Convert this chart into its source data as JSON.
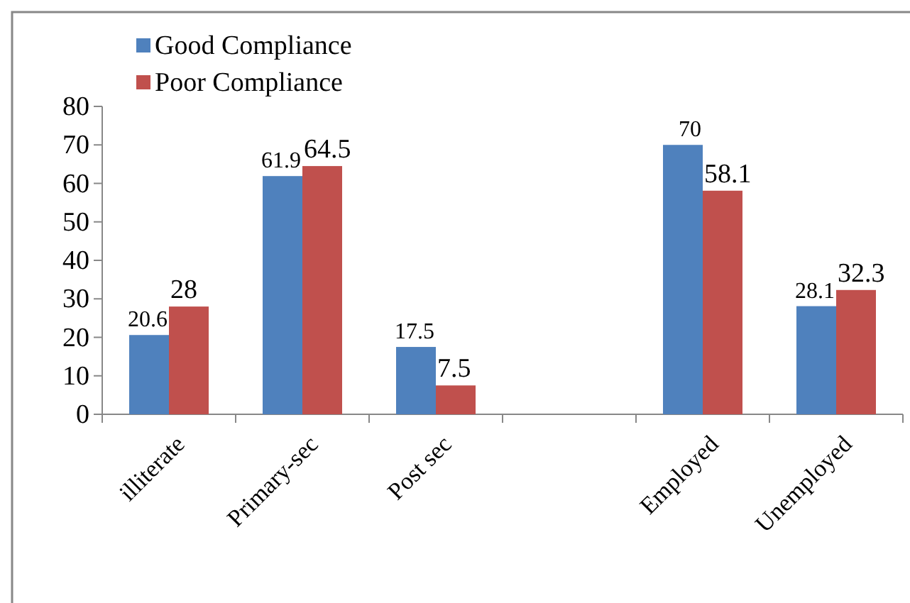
{
  "chart_data": {
    "type": "bar",
    "categories": [
      "illiterate",
      "Primary-sec",
      "Post sec",
      null,
      "Employed",
      "Unemployed"
    ],
    "series": [
      {
        "name": "Good Compliance",
        "color": "#4f81bd",
        "values": [
          20.6,
          61.9,
          17.5,
          null,
          70,
          28.1
        ]
      },
      {
        "name": "Poor Compliance",
        "color": "#c0504d",
        "values": [
          28,
          64.5,
          7.5,
          null,
          58.1,
          32.3
        ]
      }
    ],
    "ylim": [
      0,
      80
    ],
    "yticks": [
      0,
      10,
      20,
      30,
      40,
      50,
      60,
      70,
      80
    ],
    "data_labels": true,
    "legend": "top left",
    "grid": false
  }
}
